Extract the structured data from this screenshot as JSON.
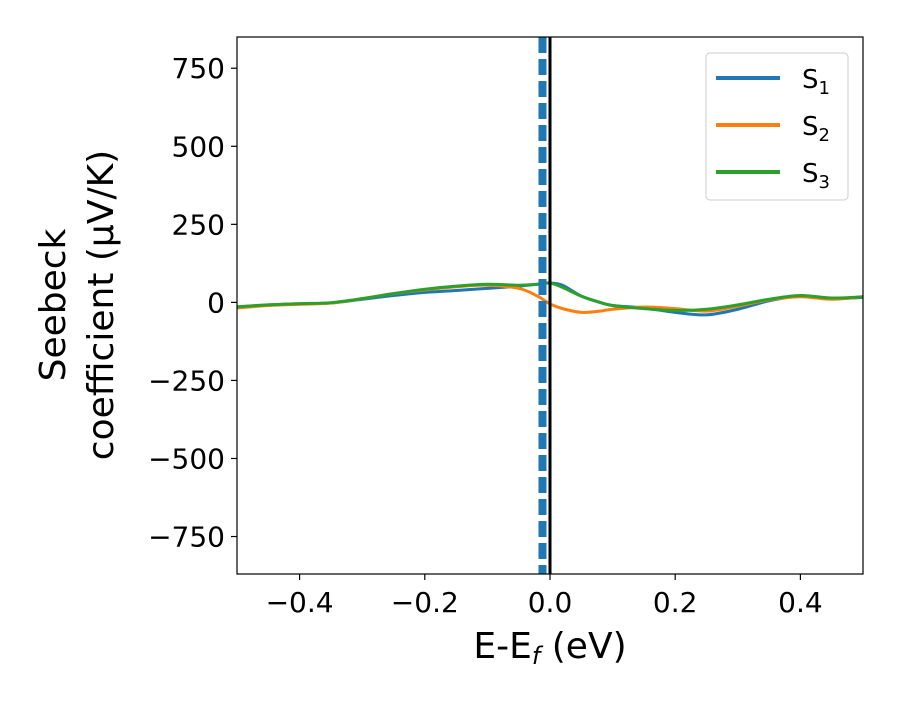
{
  "chart_data": {
    "type": "line",
    "xlabel": "E-E",
    "xlabel_sub": "f",
    "xlabel_unit": "(eV)",
    "ylabel_line1": "Seebeck",
    "ylabel_line2": "coefficient  (μV/K)",
    "xlim": [
      -0.5,
      0.5
    ],
    "ylim": [
      -870,
      850
    ],
    "xticks": [
      -0.4,
      -0.2,
      0.0,
      0.2,
      0.4
    ],
    "xtick_labels": [
      "−0.4",
      "−0.2",
      "0.0",
      "0.2",
      "0.4"
    ],
    "yticks": [
      750,
      500,
      250,
      0,
      -250,
      -500,
      -750
    ],
    "ytick_labels": [
      "750",
      "500",
      "250",
      "0",
      "−250",
      "−500",
      "−750"
    ],
    "grid": false,
    "legend": {
      "placement": "top-right"
    },
    "x": [
      -0.5,
      -0.45,
      -0.4,
      -0.35,
      -0.3,
      -0.25,
      -0.2,
      -0.15,
      -0.1,
      -0.05,
      -0.02,
      0.0,
      0.02,
      0.05,
      0.08,
      0.1,
      0.15,
      0.2,
      0.25,
      0.3,
      0.35,
      0.4,
      0.45,
      0.5
    ],
    "series": [
      {
        "name": "S",
        "name_sub": "1",
        "color": "#1f77b4",
        "values": [
          -15,
          -8,
          -5,
          -2,
          10,
          22,
          32,
          38,
          45,
          52,
          58,
          62,
          55,
          20,
          0,
          -10,
          -18,
          -32,
          -40,
          -22,
          5,
          20,
          12,
          16
        ]
      },
      {
        "name": "S",
        "name_sub": "2",
        "color": "#ff7f0e",
        "values": [
          -18,
          -10,
          -6,
          -2,
          12,
          28,
          40,
          50,
          55,
          45,
          20,
          -5,
          -20,
          -32,
          -28,
          -22,
          -15,
          -20,
          -28,
          -12,
          8,
          18,
          10,
          18
        ]
      },
      {
        "name": "S",
        "name_sub": "3",
        "color": "#2ca02c",
        "values": [
          -14,
          -8,
          -4,
          -1,
          12,
          28,
          42,
          52,
          58,
          55,
          58,
          62,
          48,
          20,
          0,
          -10,
          -20,
          -26,
          -22,
          -8,
          10,
          22,
          14,
          18
        ]
      }
    ],
    "fermi_line": {
      "x": 0.0,
      "color": "#000000"
    },
    "band_line": {
      "x": -0.012,
      "color": "#1f77b4"
    }
  }
}
